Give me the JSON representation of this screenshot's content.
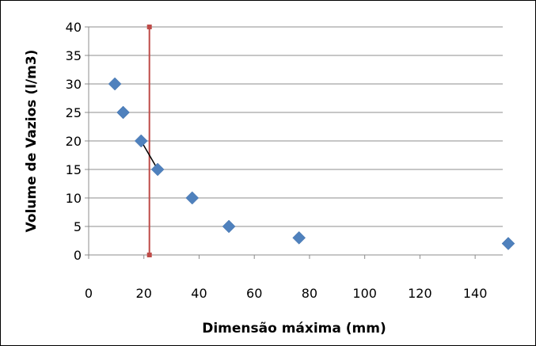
{
  "chart_data": {
    "type": "scatter",
    "xlabel": "Dimensão máxima  (mm)",
    "ylabel": "Volume de Vazios (l/m3)",
    "xlim": [
      0,
      150
    ],
    "ylim": [
      0,
      40
    ],
    "x_ticks": [
      0,
      20,
      40,
      60,
      80,
      100,
      120,
      140
    ],
    "y_ticks": [
      0,
      5,
      10,
      15,
      20,
      25,
      30,
      35,
      40
    ],
    "grid": "horizontal",
    "legend": "none",
    "series": [
      {
        "marker": "diamond",
        "color": "#4f81bd",
        "points": [
          {
            "x": 9.5,
            "y": 30
          },
          {
            "x": 12.5,
            "y": 25
          },
          {
            "x": 19,
            "y": 20
          },
          {
            "x": 25,
            "y": 15
          },
          {
            "x": 37.5,
            "y": 10
          },
          {
            "x": 50.8,
            "y": 5
          },
          {
            "x": 76.2,
            "y": 3
          },
          {
            "x": 152,
            "y": 2
          }
        ]
      }
    ],
    "annotations": [
      {
        "kind": "vertical-line",
        "x": 22,
        "y_from": 0,
        "y_to": 40,
        "color": "#be4b48"
      },
      {
        "kind": "segment",
        "from": {
          "x": 19,
          "y": 20
        },
        "to": {
          "x": 25,
          "y": 15
        },
        "color": "#000000"
      }
    ]
  }
}
